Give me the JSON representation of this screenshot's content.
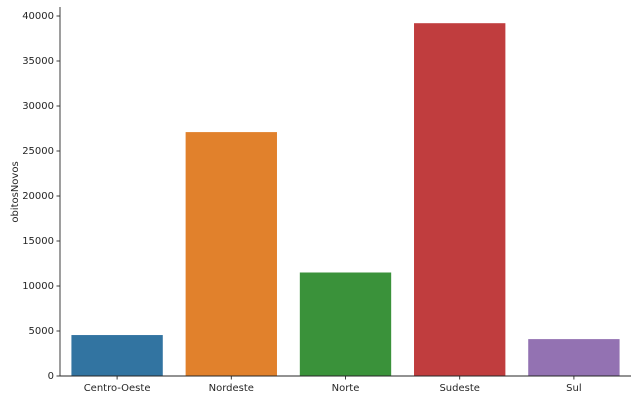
{
  "chart_data": {
    "type": "bar",
    "title": "",
    "xlabel": "",
    "ylabel": "obitosNovos",
    "categories": [
      "Centro-Oeste",
      "Nordeste",
      "Norte",
      "Sudeste",
      "Sul"
    ],
    "values": [
      4550,
      27100,
      11500,
      39200,
      4100
    ],
    "colors": [
      "#3274a1",
      "#e1812c",
      "#3a923a",
      "#c03d3e",
      "#9372b2"
    ],
    "ylim": [
      0,
      41000
    ],
    "yticks": [
      0,
      5000,
      10000,
      15000,
      20000,
      25000,
      30000,
      35000,
      40000
    ],
    "ytick_labels": [
      "0",
      "5000",
      "10000",
      "15000",
      "20000",
      "25000",
      "30000",
      "35000",
      "40000"
    ],
    "grid": false,
    "legend": "none"
  }
}
